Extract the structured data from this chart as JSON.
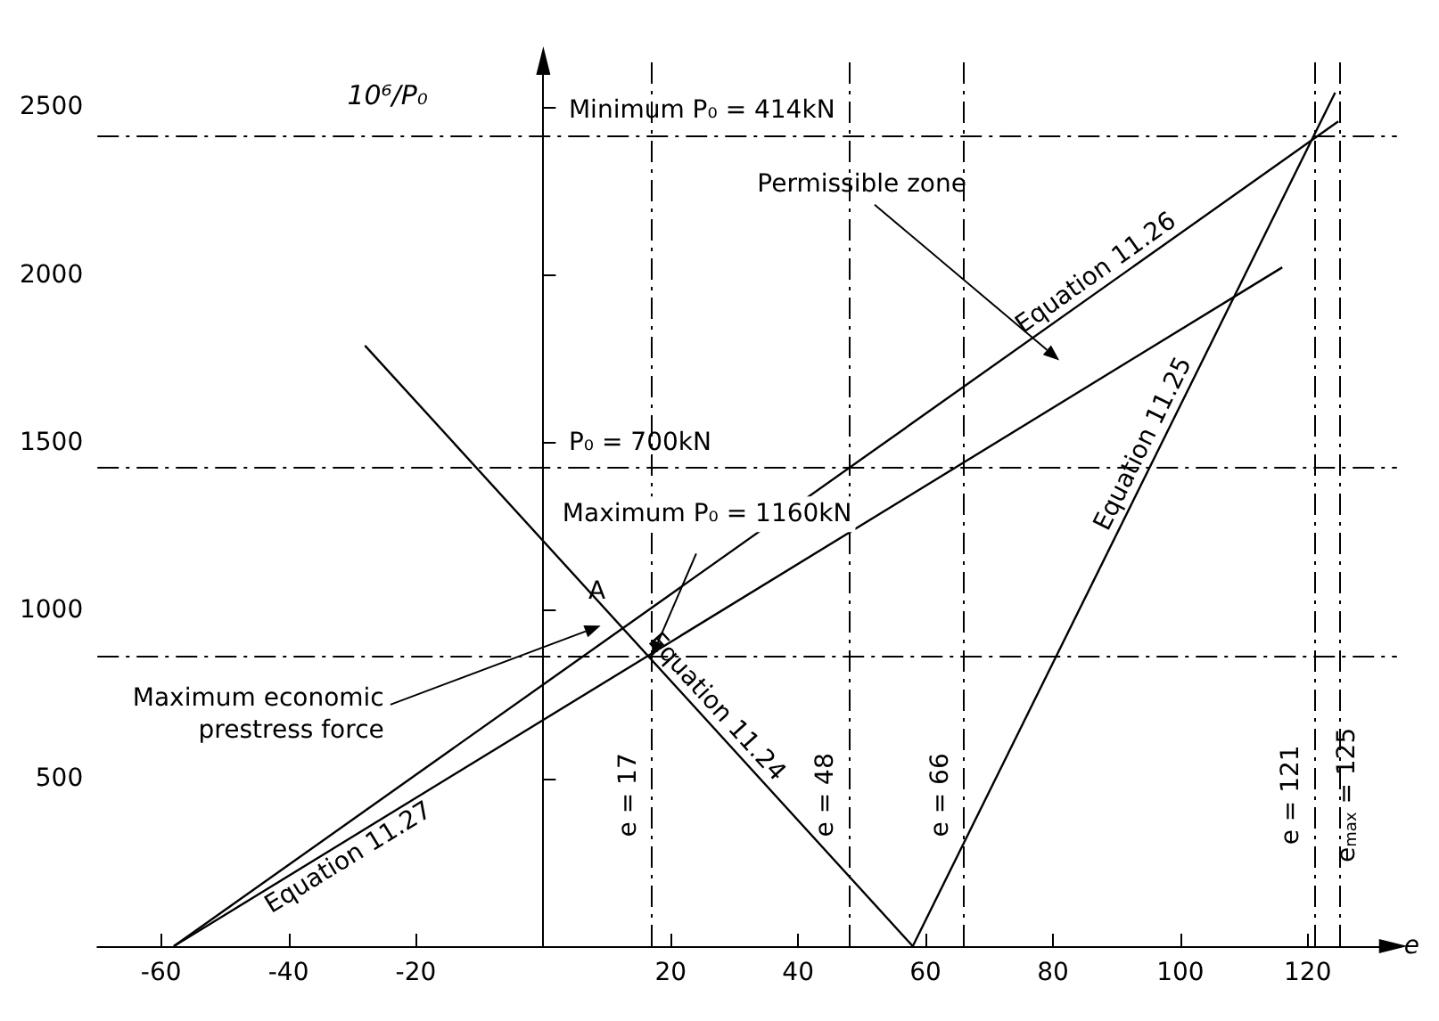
{
  "chart_data": {
    "type": "line",
    "xlabel": "e",
    "ylabel": "10⁶/P₀",
    "xlim": [
      -70,
      134
    ],
    "ylim": [
      0,
      2650
    ],
    "xticks": [
      -60,
      -40,
      -20,
      20,
      40,
      60,
      80,
      100,
      120
    ],
    "yticks": [
      500,
      1000,
      1500,
      2000,
      2500
    ],
    "grid": false,
    "legend": false,
    "marker": "none",
    "series": [
      {
        "name": "Equation 11.26",
        "color": "#000000",
        "x": [
          -58,
          124.8
        ],
        "values": [
          0,
          2458
        ]
      },
      {
        "name": "Equation 11.27",
        "color": "#000000",
        "x": [
          -58,
          116
        ],
        "values": [
          0,
          2023
        ]
      },
      {
        "name": "Equation 11.24",
        "color": "#000000",
        "x": [
          -28,
          58
        ],
        "values": [
          1790,
          0
        ]
      },
      {
        "name": "Equation 11.25",
        "color": "#000000",
        "x": [
          58,
          124.3
        ],
        "values": [
          0,
          2544
        ]
      }
    ],
    "ref_lines": [
      {
        "axis": "y",
        "value": 2415,
        "label": null,
        "line_style": "dashed",
        "color": "#000000"
      },
      {
        "axis": "y",
        "value": 1429,
        "label": null,
        "line_style": "dashed",
        "color": "#000000"
      },
      {
        "axis": "y",
        "value": 862,
        "label": null,
        "line_style": "dashed",
        "color": "#000000"
      },
      {
        "axis": "x",
        "value": 17,
        "label": "e = 17",
        "line_style": "dashed",
        "color": "#000000"
      },
      {
        "axis": "x",
        "value": 48,
        "label": "e = 48",
        "line_style": "dashed",
        "color": "#000000"
      },
      {
        "axis": "x",
        "value": 66,
        "label": "e = 66",
        "line_style": "dashed",
        "color": "#000000"
      },
      {
        "axis": "x",
        "value": 121,
        "label": "e = 121",
        "line_style": "dashed",
        "color": "#000000"
      },
      {
        "axis": "x",
        "value": 125,
        "label": "e$_{max}$ = 125",
        "line_style": "dashed",
        "color": "#000000"
      }
    ],
    "annotations": [
      "Minimum P₀ = 414kN",
      "P₀ = 700kN",
      {
        "text": "A",
        "x": 12,
        "y": 960
      },
      {
        "text": "Maximum P₀ = 1160kN",
        "x": 17,
        "y": 862
      },
      "Maximum economic prestress force",
      "Permissible zone"
    ]
  }
}
